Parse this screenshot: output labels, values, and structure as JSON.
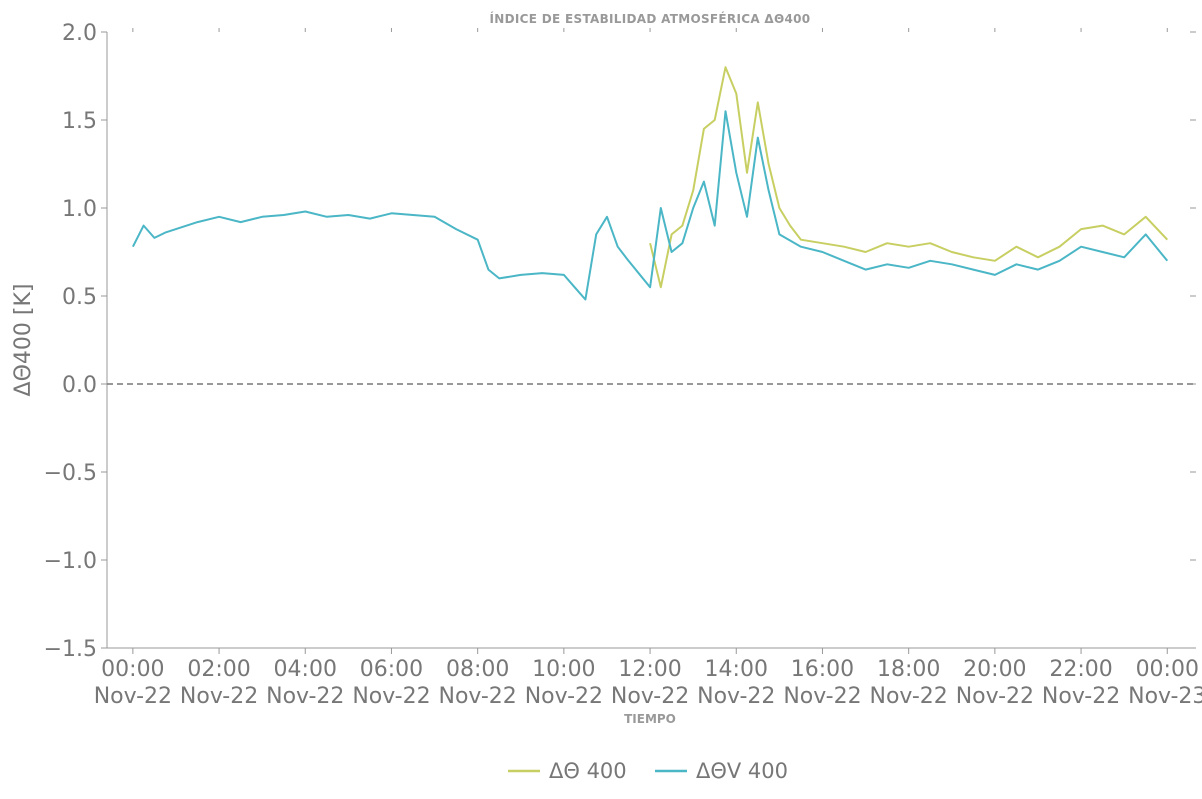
{
  "chart_data": {
    "type": "line",
    "title": "ÍNDICE DE ESTABILIDAD ATMOSFÉRICA ΔΘ400",
    "xlabel": "TIEMPO",
    "ylabel": "ΔΘ400 [K]",
    "ylim": [
      -1.5,
      2.0
    ],
    "xlim": [
      "2022-11-21T23:24",
      "2022-11-23T00:40"
    ],
    "y_ticks": [
      2.0,
      1.5,
      1.0,
      0.5,
      0.0,
      -0.5,
      -1.0,
      -1.5
    ],
    "y_tick_labels": [
      "2.0",
      "1.5",
      "1.0",
      "0.5",
      "0.0",
      "−0.5",
      "−1.0",
      "−1.5"
    ],
    "x_ticks": [
      {
        "time": "00:00",
        "date": "Nov-22",
        "t": "2022-11-22T00:00"
      },
      {
        "time": "02:00",
        "date": "Nov-22",
        "t": "2022-11-22T02:00"
      },
      {
        "time": "04:00",
        "date": "Nov-22",
        "t": "2022-11-22T04:00"
      },
      {
        "time": "06:00",
        "date": "Nov-22",
        "t": "2022-11-22T06:00"
      },
      {
        "time": "08:00",
        "date": "Nov-22",
        "t": "2022-11-22T08:00"
      },
      {
        "time": "10:00",
        "date": "Nov-22",
        "t": "2022-11-22T10:00"
      },
      {
        "time": "12:00",
        "date": "Nov-22",
        "t": "2022-11-22T12:00"
      },
      {
        "time": "14:00",
        "date": "Nov-22",
        "t": "2022-11-22T14:00"
      },
      {
        "time": "16:00",
        "date": "Nov-22",
        "t": "2022-11-22T16:00"
      },
      {
        "time": "18:00",
        "date": "Nov-22",
        "t": "2022-11-22T18:00"
      },
      {
        "time": "20:00",
        "date": "Nov-22",
        "t": "2022-11-22T20:00"
      },
      {
        "time": "22:00",
        "date": "Nov-22",
        "t": "2022-11-22T22:00"
      },
      {
        "time": "00:00",
        "date": "Nov-23",
        "t": "2022-11-23T00:00"
      }
    ],
    "reference_line": {
      "y": 0.0,
      "style": "dashed",
      "color": "#777777"
    },
    "grid": false,
    "legend_position": "bottom-center",
    "series": [
      {
        "name": "ΔΘ 400",
        "color": "#c8cf62",
        "points": [
          [
            "2022-11-22T12:00",
            0.8
          ],
          [
            "2022-11-22T12:15",
            0.55
          ],
          [
            "2022-11-22T12:30",
            0.85
          ],
          [
            "2022-11-22T12:45",
            0.9
          ],
          [
            "2022-11-22T13:00",
            1.1
          ],
          [
            "2022-11-22T13:15",
            1.45
          ],
          [
            "2022-11-22T13:30",
            1.5
          ],
          [
            "2022-11-22T13:45",
            1.8
          ],
          [
            "2022-11-22T14:00",
            1.65
          ],
          [
            "2022-11-22T14:15",
            1.2
          ],
          [
            "2022-11-22T14:30",
            1.6
          ],
          [
            "2022-11-22T14:45",
            1.25
          ],
          [
            "2022-11-22T15:00",
            1.0
          ],
          [
            "2022-11-22T15:15",
            0.9
          ],
          [
            "2022-11-22T15:30",
            0.82
          ],
          [
            "2022-11-22T16:00",
            0.8
          ],
          [
            "2022-11-22T16:30",
            0.78
          ],
          [
            "2022-11-22T17:00",
            0.75
          ],
          [
            "2022-11-22T17:30",
            0.8
          ],
          [
            "2022-11-22T18:00",
            0.78
          ],
          [
            "2022-11-22T18:30",
            0.8
          ],
          [
            "2022-11-22T19:00",
            0.75
          ],
          [
            "2022-11-22T19:30",
            0.72
          ],
          [
            "2022-11-22T20:00",
            0.7
          ],
          [
            "2022-11-22T20:30",
            0.78
          ],
          [
            "2022-11-22T21:00",
            0.72
          ],
          [
            "2022-11-22T21:30",
            0.78
          ],
          [
            "2022-11-22T22:00",
            0.88
          ],
          [
            "2022-11-22T22:30",
            0.9
          ],
          [
            "2022-11-22T23:00",
            0.85
          ],
          [
            "2022-11-22T23:30",
            0.95
          ],
          [
            "2022-11-23T00:00",
            0.82
          ]
        ]
      },
      {
        "name": "ΔΘV 400",
        "color": "#4ab6c6",
        "points": [
          [
            "2022-11-22T00:00",
            0.78
          ],
          [
            "2022-11-22T00:15",
            0.9
          ],
          [
            "2022-11-22T00:30",
            0.83
          ],
          [
            "2022-11-22T00:45",
            0.86
          ],
          [
            "2022-11-22T01:00",
            0.88
          ],
          [
            "2022-11-22T01:30",
            0.92
          ],
          [
            "2022-11-22T02:00",
            0.95
          ],
          [
            "2022-11-22T02:30",
            0.92
          ],
          [
            "2022-11-22T03:00",
            0.95
          ],
          [
            "2022-11-22T03:30",
            0.96
          ],
          [
            "2022-11-22T04:00",
            0.98
          ],
          [
            "2022-11-22T04:30",
            0.95
          ],
          [
            "2022-11-22T05:00",
            0.96
          ],
          [
            "2022-11-22T05:30",
            0.94
          ],
          [
            "2022-11-22T06:00",
            0.97
          ],
          [
            "2022-11-22T06:30",
            0.96
          ],
          [
            "2022-11-22T07:00",
            0.95
          ],
          [
            "2022-11-22T07:30",
            0.88
          ],
          [
            "2022-11-22T08:00",
            0.82
          ],
          [
            "2022-11-22T08:15",
            0.65
          ],
          [
            "2022-11-22T08:30",
            0.6
          ],
          [
            "2022-11-22T09:00",
            0.62
          ],
          [
            "2022-11-22T09:30",
            0.63
          ],
          [
            "2022-11-22T10:00",
            0.62
          ],
          [
            "2022-11-22T10:15",
            0.55
          ],
          [
            "2022-11-22T10:30",
            0.48
          ],
          [
            "2022-11-22T10:45",
            0.85
          ],
          [
            "2022-11-22T11:00",
            0.95
          ],
          [
            "2022-11-22T11:15",
            0.78
          ],
          [
            "2022-11-22T11:30",
            0.7
          ],
          [
            "2022-11-22T12:00",
            0.55
          ],
          [
            "2022-11-22T12:15",
            1.0
          ],
          [
            "2022-11-22T12:30",
            0.75
          ],
          [
            "2022-11-22T12:45",
            0.8
          ],
          [
            "2022-11-22T13:00",
            1.0
          ],
          [
            "2022-11-22T13:15",
            1.15
          ],
          [
            "2022-11-22T13:30",
            0.9
          ],
          [
            "2022-11-22T13:45",
            1.55
          ],
          [
            "2022-11-22T14:00",
            1.2
          ],
          [
            "2022-11-22T14:15",
            0.95
          ],
          [
            "2022-11-22T14:30",
            1.4
          ],
          [
            "2022-11-22T14:45",
            1.1
          ],
          [
            "2022-11-22T15:00",
            0.85
          ],
          [
            "2022-11-22T15:30",
            0.78
          ],
          [
            "2022-11-22T16:00",
            0.75
          ],
          [
            "2022-11-22T16:30",
            0.7
          ],
          [
            "2022-11-22T17:00",
            0.65
          ],
          [
            "2022-11-22T17:30",
            0.68
          ],
          [
            "2022-11-22T18:00",
            0.66
          ],
          [
            "2022-11-22T18:30",
            0.7
          ],
          [
            "2022-11-22T19:00",
            0.68
          ],
          [
            "2022-11-22T19:30",
            0.65
          ],
          [
            "2022-11-22T20:00",
            0.62
          ],
          [
            "2022-11-22T20:30",
            0.68
          ],
          [
            "2022-11-22T21:00",
            0.65
          ],
          [
            "2022-11-22T21:30",
            0.7
          ],
          [
            "2022-11-22T22:00",
            0.78
          ],
          [
            "2022-11-22T22:30",
            0.75
          ],
          [
            "2022-11-22T23:00",
            0.72
          ],
          [
            "2022-11-22T23:30",
            0.85
          ],
          [
            "2022-11-23T00:00",
            0.7
          ]
        ]
      }
    ]
  }
}
